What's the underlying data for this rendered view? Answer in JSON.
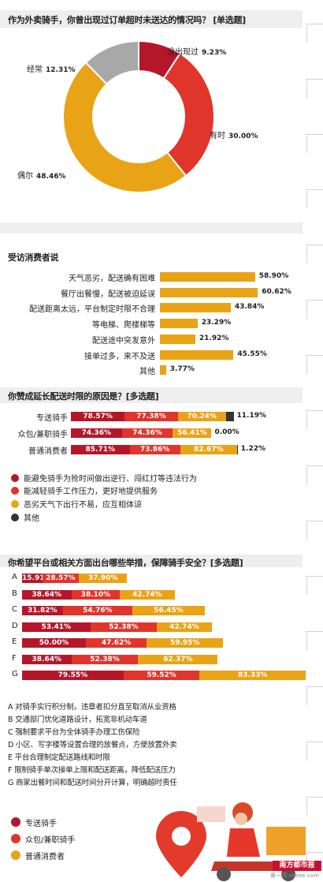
{
  "colors": {
    "dark_red": "#b5172a",
    "red": "#e0352b",
    "orange": "#e9a317",
    "gray": "#a8a8a8",
    "black": "#333333"
  },
  "chart_data": [
    {
      "type": "pie",
      "title": "作为外卖骑手，你曾出现过订单超时未送达的情况吗？ [单选题]",
      "labels": [
        "没出现过",
        "有时",
        "偶尔",
        "经常"
      ],
      "values": [
        9.23,
        30.0,
        48.46,
        12.31
      ],
      "value_labels": [
        "9.23%",
        "30.00%",
        "48.46%",
        "12.31%"
      ],
      "colors": [
        "#b5172a",
        "#e0352b",
        "#e9a317",
        "#a8a8a8"
      ]
    },
    {
      "type": "bar",
      "title": "受访消费者说",
      "categories": [
        "天气恶劣，配送确有困难",
        "餐厅出餐慢，配送被迫延误",
        "配送距离太远，平台制定时限不合理",
        "等电梯、爬楼梯等",
        "配送途中突发意外",
        "接单过多，来不及送",
        "其他"
      ],
      "values": [
        58.9,
        60.62,
        43.84,
        23.29,
        21.92,
        45.55,
        3.77
      ],
      "value_labels": [
        "58.90%",
        "60.62%",
        "43.84%",
        "23.29%",
        "21.92%",
        "45.55%",
        "3.77%"
      ],
      "color": "#e9a317"
    },
    {
      "type": "bar",
      "title": "你赞成延长配送时限的原因是？[多选题]",
      "categories": [
        "专送骑手",
        "众包/兼职骑手",
        "普通消费者"
      ],
      "series": [
        {
          "name": "能避免骑手为抢时间做出逆行、闯红灯等违法行为",
          "values": [
            78.57,
            74.36,
            85.71
          ],
          "labels": [
            "78.57%",
            "74.36%",
            "85.71%"
          ],
          "color": "#b5172a"
        },
        {
          "name": "能减轻骑手工作压力，更好地提供服务",
          "values": [
            77.38,
            74.36,
            73.86
          ],
          "labels": [
            "77.38%",
            "74.36%",
            "73.86%"
          ],
          "color": "#e0352b"
        },
        {
          "name": "恶劣天气下出行不易，应互相体谅",
          "values": [
            70.24,
            56.41,
            82.67
          ],
          "labels": [
            "70.24%",
            "56.41%",
            "82.67%"
          ],
          "color": "#e9a317"
        },
        {
          "name": "其他",
          "values": [
            11.19,
            0.0,
            1.22
          ],
          "labels": [
            "11.19%",
            "0.00%",
            "1.22%"
          ],
          "color": "#333333"
        }
      ]
    },
    {
      "type": "bar",
      "title": "你希望平台或相关方面出台哪些举措，保障骑手安全？[多选题]",
      "categories": [
        "A",
        "B",
        "C",
        "D",
        "E",
        "F",
        "G"
      ],
      "series": [
        {
          "name": "专送骑手",
          "values": [
            15.91,
            38.64,
            31.82,
            53.41,
            50.0,
            38.64,
            79.55
          ],
          "labels": [
            "15.91%",
            "38.64%",
            "31.82%",
            "53.41%",
            "50.00%",
            "38.64%",
            "79.55%"
          ],
          "color": "#b5172a"
        },
        {
          "name": "众包/兼职骑手",
          "values": [
            28.57,
            38.1,
            54.76,
            52.38,
            47.62,
            52.38,
            59.52
          ],
          "labels": [
            "28.57%",
            "38.10%",
            "54.76%",
            "52.38%",
            "47.62%",
            "52.38%",
            "59.52%"
          ],
          "color": "#e0352b"
        },
        {
          "name": "普通消费者",
          "values": [
            37.9,
            42.74,
            56.45,
            42.74,
            59.95,
            62.37,
            83.33
          ],
          "labels": [
            "37.90%",
            "42.74%",
            "56.45%",
            "42.74%",
            "59.95%",
            "62.37%",
            "83.33%"
          ],
          "color": "#e9a317"
        }
      ]
    }
  ],
  "measures": {
    "A": "A 对骑手实行积分制，违章者扣分直至取消从业资格",
    "B": "B 交通部门优化道路设计，拓宽非机动车道",
    "C": "C 强制要求平台为全体骑手办理工伤保险",
    "D": "D 小区、写字楼等设置合理的放餐点，方便放置外卖",
    "E": "E 平台合理制定配送路线和时限",
    "F": "F 限制骑手单次接单上限和配送距离，降低配送压力",
    "G": "G 商家出餐时间和配送时间分开计算，明确超时责任"
  },
  "source": {
    "newspaper": "南方都市报",
    "watermark": "奥一网 oeeee.com"
  }
}
